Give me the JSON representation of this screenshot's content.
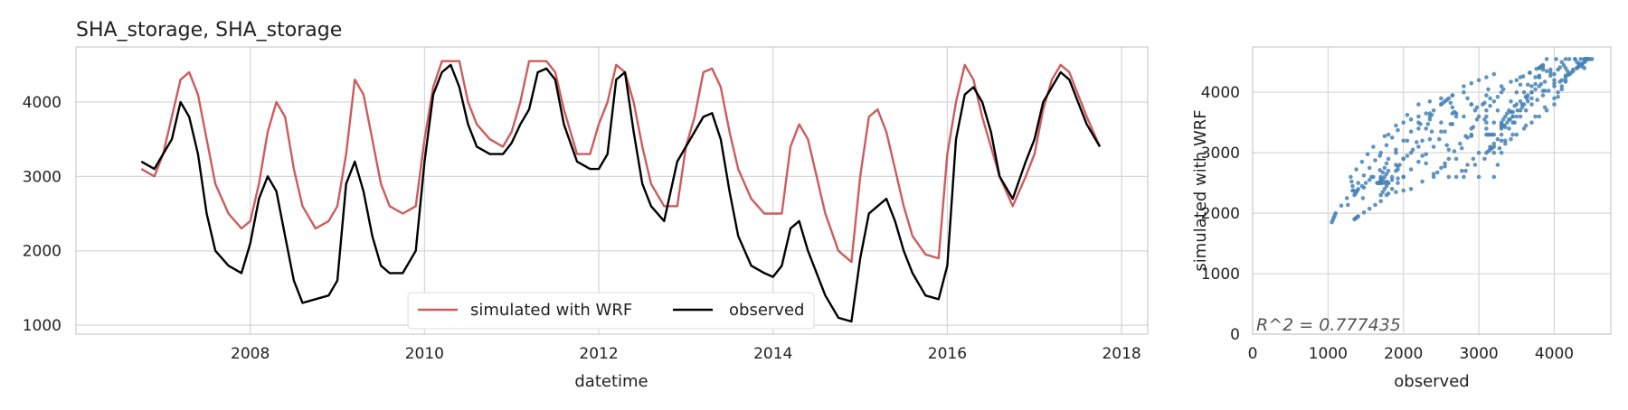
{
  "chart_data": [
    {
      "type": "line",
      "title": "SHA_storage, SHA_storage",
      "xlabel": "datetime",
      "ylabel": "",
      "xlim": [
        2006.0,
        2018.3
      ],
      "ylim": [
        880,
        4740
      ],
      "x_ticks": [
        2008,
        2010,
        2012,
        2014,
        2016,
        2018
      ],
      "y_ticks": [
        1000,
        2000,
        3000,
        4000
      ],
      "grid": true,
      "legend": "bottom-center",
      "series": [
        {
          "name": "simulated with WRF",
          "color": "#cd5c5c",
          "x": [
            2006.75,
            2006.9,
            2007.0,
            2007.1,
            2007.2,
            2007.3,
            2007.4,
            2007.5,
            2007.6,
            2007.75,
            2007.9,
            2008.0,
            2008.1,
            2008.2,
            2008.3,
            2008.4,
            2008.5,
            2008.6,
            2008.75,
            2008.9,
            2009.0,
            2009.1,
            2009.2,
            2009.3,
            2009.4,
            2009.5,
            2009.6,
            2009.75,
            2009.9,
            2010.0,
            2010.1,
            2010.2,
            2010.3,
            2010.4,
            2010.5,
            2010.6,
            2010.75,
            2010.9,
            2011.0,
            2011.1,
            2011.2,
            2011.3,
            2011.4,
            2011.5,
            2011.6,
            2011.75,
            2011.9,
            2012.0,
            2012.1,
            2012.2,
            2012.3,
            2012.4,
            2012.5,
            2012.6,
            2012.75,
            2012.9,
            2013.0,
            2013.1,
            2013.2,
            2013.3,
            2013.4,
            2013.5,
            2013.6,
            2013.75,
            2013.9,
            2014.0,
            2014.1,
            2014.2,
            2014.3,
            2014.4,
            2014.5,
            2014.6,
            2014.75,
            2014.9,
            2015.0,
            2015.1,
            2015.2,
            2015.3,
            2015.4,
            2015.5,
            2015.6,
            2015.75,
            2015.9,
            2016.0,
            2016.1,
            2016.2,
            2016.3,
            2016.4,
            2016.5,
            2016.6,
            2016.75,
            2016.9,
            2017.0,
            2017.1,
            2017.2,
            2017.3,
            2017.4,
            2017.5,
            2017.6,
            2017.75
          ],
          "values": [
            3100,
            3000,
            3300,
            3800,
            4300,
            4400,
            4100,
            3500,
            2900,
            2500,
            2300,
            2400,
            2900,
            3600,
            4000,
            3800,
            3100,
            2600,
            2300,
            2400,
            2600,
            3300,
            4300,
            4100,
            3500,
            2900,
            2600,
            2500,
            2600,
            3500,
            4200,
            4550,
            4550,
            4550,
            4000,
            3700,
            3500,
            3400,
            3600,
            4000,
            4550,
            4550,
            4550,
            4400,
            3900,
            3300,
            3300,
            3700,
            4000,
            4500,
            4400,
            4000,
            3400,
            2900,
            2600,
            2600,
            3400,
            3800,
            4400,
            4450,
            4200,
            3600,
            3100,
            2700,
            2500,
            2500,
            2500,
            3400,
            3700,
            3500,
            3000,
            2500,
            2000,
            1850,
            3000,
            3800,
            3900,
            3600,
            3100,
            2600,
            2200,
            1950,
            1900,
            3300,
            4000,
            4500,
            4300,
            3800,
            3400,
            3000,
            2600,
            3000,
            3300,
            3900,
            4300,
            4500,
            4400,
            4100,
            3800,
            3400
          ]
        },
        {
          "name": "observed",
          "color": "#000000",
          "x": [
            2006.75,
            2006.9,
            2007.0,
            2007.1,
            2007.2,
            2007.3,
            2007.4,
            2007.5,
            2007.6,
            2007.75,
            2007.9,
            2008.0,
            2008.1,
            2008.2,
            2008.3,
            2008.4,
            2008.5,
            2008.6,
            2008.75,
            2008.9,
            2009.0,
            2009.1,
            2009.2,
            2009.3,
            2009.4,
            2009.5,
            2009.6,
            2009.75,
            2009.9,
            2010.0,
            2010.1,
            2010.2,
            2010.3,
            2010.4,
            2010.5,
            2010.6,
            2010.75,
            2010.9,
            2011.0,
            2011.1,
            2011.2,
            2011.3,
            2011.4,
            2011.5,
            2011.6,
            2011.75,
            2011.9,
            2012.0,
            2012.1,
            2012.2,
            2012.3,
            2012.4,
            2012.5,
            2012.6,
            2012.75,
            2012.9,
            2013.0,
            2013.1,
            2013.2,
            2013.3,
            2013.4,
            2013.5,
            2013.6,
            2013.75,
            2013.9,
            2014.0,
            2014.1,
            2014.2,
            2014.3,
            2014.4,
            2014.5,
            2014.6,
            2014.75,
            2014.9,
            2015.0,
            2015.1,
            2015.2,
            2015.3,
            2015.4,
            2015.5,
            2015.6,
            2015.75,
            2015.9,
            2016.0,
            2016.1,
            2016.2,
            2016.3,
            2016.4,
            2016.5,
            2016.6,
            2016.75,
            2016.9,
            2017.0,
            2017.1,
            2017.2,
            2017.3,
            2017.4,
            2017.5,
            2017.6,
            2017.75
          ],
          "values": [
            3200,
            3100,
            3300,
            3500,
            4000,
            3800,
            3300,
            2500,
            2000,
            1800,
            1700,
            2100,
            2700,
            3000,
            2800,
            2200,
            1600,
            1300,
            1350,
            1400,
            1600,
            2900,
            3200,
            2800,
            2200,
            1800,
            1700,
            1700,
            2000,
            3200,
            4100,
            4400,
            4500,
            4200,
            3700,
            3400,
            3300,
            3300,
            3450,
            3700,
            3900,
            4400,
            4450,
            4300,
            3700,
            3200,
            3100,
            3100,
            3300,
            4300,
            4400,
            3600,
            2900,
            2600,
            2400,
            3200,
            3400,
            3600,
            3800,
            3850,
            3500,
            2800,
            2200,
            1800,
            1700,
            1650,
            1800,
            2300,
            2400,
            2000,
            1700,
            1400,
            1100,
            1050,
            1900,
            2500,
            2600,
            2700,
            2400,
            2000,
            1700,
            1400,
            1350,
            1800,
            3500,
            4100,
            4200,
            4000,
            3600,
            3000,
            2700,
            3200,
            3500,
            4000,
            4200,
            4400,
            4300,
            4000,
            3700,
            3400
          ]
        }
      ]
    },
    {
      "type": "scatter",
      "title": "",
      "xlabel": "observed",
      "ylabel": "simulated with WRF",
      "xlim": [
        0,
        4750
      ],
      "ylim": [
        0,
        4750
      ],
      "x_ticks": [
        0,
        1000,
        2000,
        3000,
        4000
      ],
      "y_ticks": [
        0,
        1000,
        2000,
        3000,
        4000
      ],
      "grid": true,
      "color": "#4682b4",
      "annotation": "R^2 = 0.777435",
      "paired_with": "series observed vs simulated with WRF"
    }
  ]
}
